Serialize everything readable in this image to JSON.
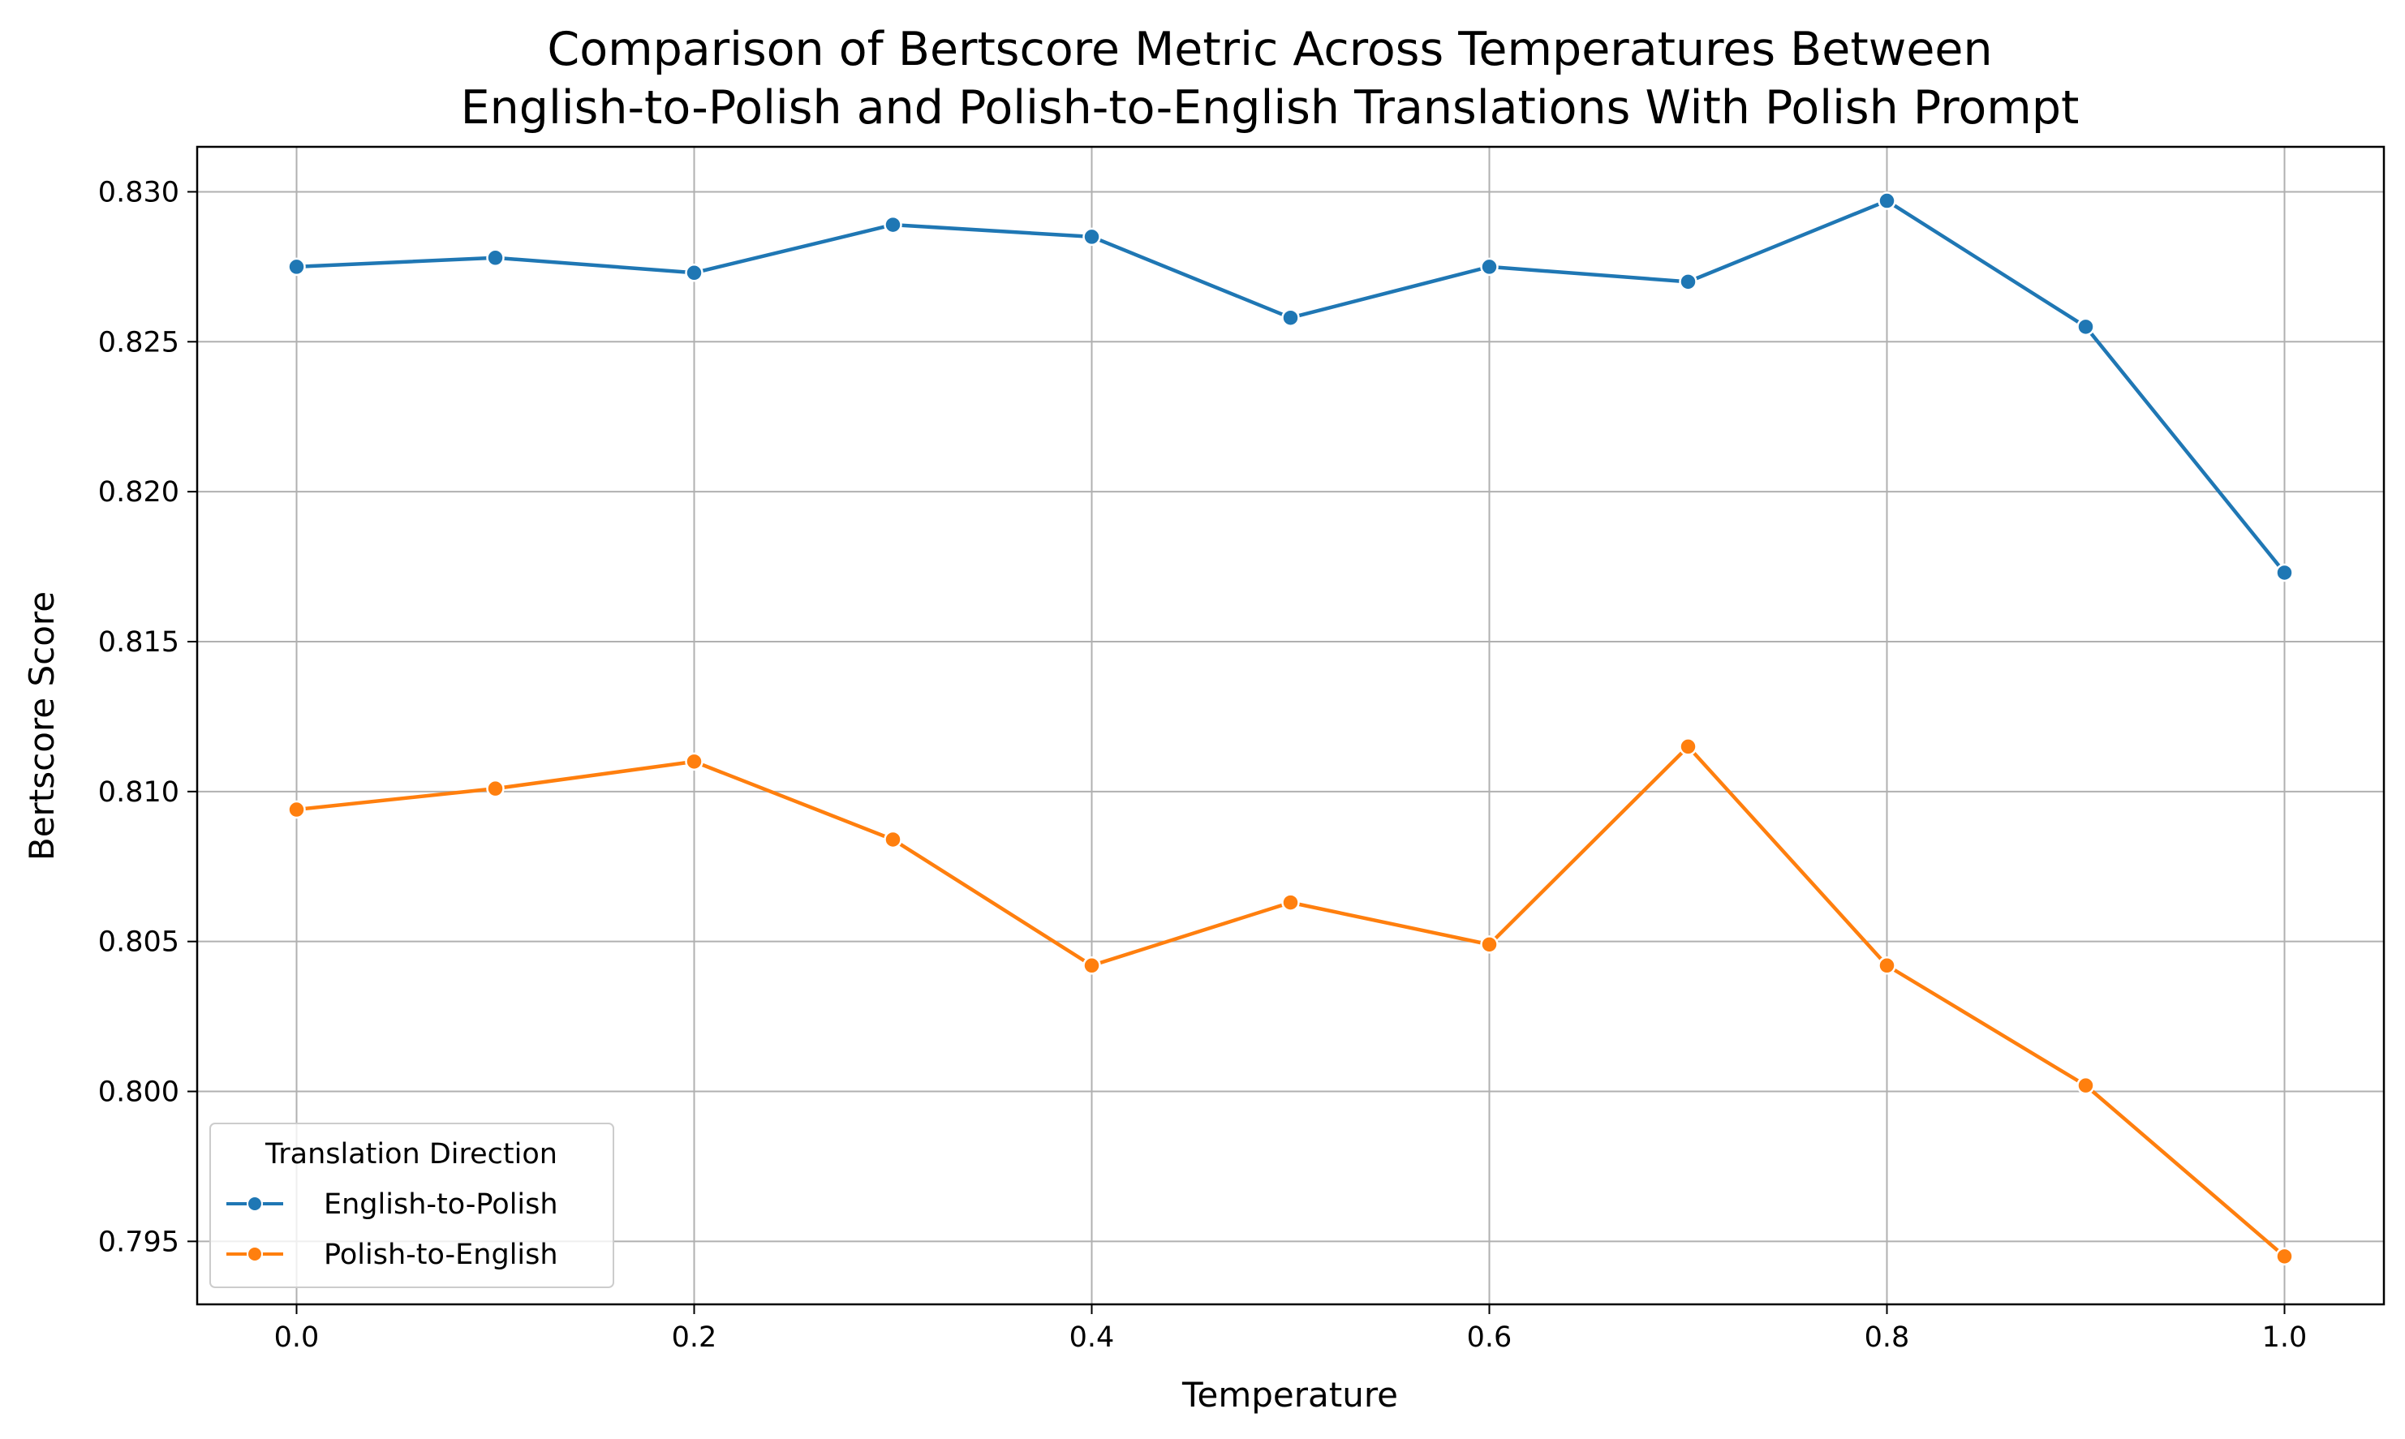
{
  "chart_data": {
    "type": "line",
    "title_line1": "Comparison of Bertscore Metric Across Temperatures Between",
    "title_line2": "English-to-Polish and Polish-to-English Translations With Polish Prompt",
    "xlabel": "Temperature",
    "ylabel": "Bertscore Score",
    "x": [
      0.0,
      0.1,
      0.2,
      0.3,
      0.4,
      0.5,
      0.6,
      0.7,
      0.8,
      0.9,
      1.0
    ],
    "xlim": [
      -0.05,
      1.05
    ],
    "ylim": [
      0.7929,
      0.8315
    ],
    "xticks": [
      0.0,
      0.2,
      0.4,
      0.6,
      0.8,
      1.0
    ],
    "xtick_labels": [
      "0.0",
      "0.2",
      "0.4",
      "0.6",
      "0.8",
      "1.0"
    ],
    "yticks": [
      0.795,
      0.8,
      0.805,
      0.81,
      0.815,
      0.82,
      0.825,
      0.83
    ],
    "ytick_labels": [
      "0.795",
      "0.800",
      "0.805",
      "0.810",
      "0.815",
      "0.820",
      "0.825",
      "0.830"
    ],
    "grid": true,
    "legend": {
      "title": "Translation Direction",
      "placement": "lower-left"
    },
    "series": [
      {
        "name": "English-to-Polish",
        "color": "#1f77b4",
        "values": [
          0.8275,
          0.8278,
          0.8273,
          0.8289,
          0.8285,
          0.8258,
          0.8275,
          0.827,
          0.8297,
          0.8255,
          0.8173
        ]
      },
      {
        "name": "Polish-to-English",
        "color": "#ff7f0e",
        "values": [
          0.8094,
          0.8101,
          0.811,
          0.8084,
          0.8042,
          0.8063,
          0.8049,
          0.8115,
          0.8042,
          0.8002,
          0.7945
        ]
      }
    ]
  }
}
